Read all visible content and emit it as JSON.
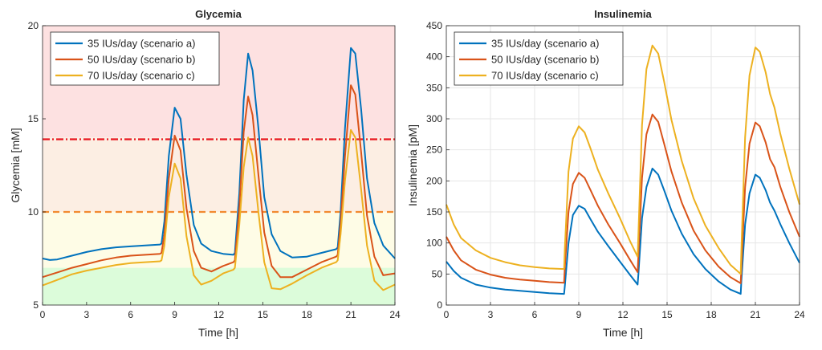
{
  "colors": {
    "scenario_a": "#0072BD",
    "scenario_b": "#D95319",
    "scenario_c": "#EDB120",
    "hyper_threshold": "#E8141E",
    "mid_threshold": "#F28A30",
    "band_red": "#FDE1E1",
    "band_orange": "#FCEEE3",
    "band_yellow": "#FEFCE6",
    "band_green": "#DCFCDA"
  },
  "chart_data": [
    {
      "type": "line",
      "title": "Glycemia",
      "xlabel": "Time [h]",
      "ylabel": "Glycemia [mM]",
      "xlim": [
        0,
        24
      ],
      "ylim": [
        5,
        20
      ],
      "xticks": [
        "0",
        "3",
        "6",
        "9",
        "12",
        "15",
        "18",
        "21",
        "24"
      ],
      "yticks": [
        "5",
        "10",
        "15",
        "20"
      ],
      "grid": false,
      "legend_position": "top-left",
      "bands": [
        {
          "from": 14,
          "to": 20,
          "color": "band_red"
        },
        {
          "from": 10,
          "to": 14,
          "color": "band_orange"
        },
        {
          "from": 7,
          "to": 10,
          "color": "band_yellow"
        },
        {
          "from": 5,
          "to": 7,
          "color": "band_green"
        }
      ],
      "thresholds": [
        {
          "y": 13.9,
          "color": "hyper_threshold",
          "style": "dashdot"
        },
        {
          "y": 10,
          "color": "mid_threshold",
          "style": "dashed"
        }
      ],
      "series": [
        {
          "name": "35 IUs/day (scenario a)",
          "color": "scenario_a",
          "x": [
            0,
            0.5,
            1,
            2,
            3,
            4,
            5,
            6,
            7,
            8,
            8.1,
            8.3,
            8.6,
            9,
            9.4,
            9.8,
            10.3,
            10.8,
            11.5,
            12.3,
            13,
            13.1,
            13.4,
            13.7,
            14,
            14.3,
            14.7,
            15.1,
            15.6,
            16.2,
            17,
            18,
            19,
            20,
            20.1,
            20.3,
            20.6,
            21,
            21.3,
            21.7,
            22.1,
            22.6,
            23.2,
            24
          ],
          "y": [
            7.5,
            7.42,
            7.45,
            7.65,
            7.85,
            8.0,
            8.1,
            8.15,
            8.2,
            8.25,
            8.3,
            9.5,
            13.0,
            15.6,
            15.0,
            12.0,
            9.3,
            8.3,
            7.9,
            7.75,
            7.7,
            7.8,
            11.0,
            16.0,
            18.5,
            17.6,
            14.5,
            10.8,
            8.8,
            7.9,
            7.55,
            7.6,
            7.8,
            8.0,
            8.1,
            10.0,
            14.5,
            18.8,
            18.5,
            15.5,
            11.8,
            9.4,
            8.2,
            7.5
          ]
        },
        {
          "name": "50 IUs/day (scenario b)",
          "color": "scenario_b",
          "x": [
            0,
            1,
            2,
            3,
            4,
            5,
            6,
            7,
            8,
            8.1,
            8.3,
            8.6,
            9,
            9.4,
            9.8,
            10.3,
            10.8,
            11.5,
            12.3,
            13,
            13.1,
            13.4,
            13.7,
            14,
            14.3,
            14.7,
            15.1,
            15.6,
            16.2,
            17,
            18,
            19,
            20,
            20.1,
            20.3,
            20.6,
            21,
            21.3,
            21.7,
            22.1,
            22.6,
            23.2,
            24
          ],
          "y": [
            6.5,
            6.75,
            7.0,
            7.2,
            7.4,
            7.55,
            7.65,
            7.7,
            7.75,
            7.8,
            8.8,
            11.8,
            14.1,
            13.3,
            10.2,
            7.9,
            7.0,
            6.8,
            7.1,
            7.3,
            7.4,
            10.2,
            14.3,
            16.2,
            15.2,
            12.0,
            8.9,
            7.1,
            6.5,
            6.5,
            6.9,
            7.3,
            7.6,
            7.7,
            9.4,
            13.0,
            16.8,
            16.3,
            13.2,
            9.8,
            7.6,
            6.6,
            6.7
          ]
        },
        {
          "name": "70 IUs/day (scenario c)",
          "color": "scenario_c",
          "x": [
            0,
            1,
            2,
            3,
            4,
            5,
            6,
            7,
            8,
            8.1,
            8.3,
            8.6,
            9,
            9.4,
            9.8,
            10.3,
            10.8,
            11.5,
            12.3,
            13,
            13.1,
            13.4,
            13.7,
            14,
            14.3,
            14.7,
            15.1,
            15.6,
            16.2,
            17,
            18,
            19,
            20,
            20.1,
            20.3,
            20.6,
            21,
            21.3,
            21.7,
            22.1,
            22.6,
            23.2,
            24
          ],
          "y": [
            6.05,
            6.35,
            6.65,
            6.85,
            7.0,
            7.15,
            7.25,
            7.3,
            7.35,
            7.4,
            8.2,
            10.8,
            12.6,
            11.8,
            8.7,
            6.6,
            6.1,
            6.3,
            6.7,
            6.9,
            7.0,
            9.3,
            12.4,
            14.0,
            13.0,
            10.0,
            7.3,
            5.9,
            5.85,
            6.15,
            6.6,
            7.0,
            7.3,
            7.4,
            8.8,
            11.7,
            14.4,
            14.0,
            11.2,
            8.2,
            6.3,
            5.8,
            6.1
          ]
        }
      ]
    },
    {
      "type": "line",
      "title": "Insulinemia",
      "xlabel": "Time [h]",
      "ylabel": "Insulinemia [pM]",
      "xlim": [
        0,
        24
      ],
      "ylim": [
        0,
        450
      ],
      "xticks": [
        "0",
        "3",
        "6",
        "9",
        "12",
        "15",
        "18",
        "21",
        "24"
      ],
      "yticks": [
        "0",
        "50",
        "100",
        "150",
        "200",
        "250",
        "300",
        "350",
        "400",
        "450"
      ],
      "grid": true,
      "legend_position": "top-left",
      "series": [
        {
          "name": "35 IUs/day (scenario a)",
          "color": "scenario_a",
          "x": [
            0,
            0.5,
            1,
            2,
            3,
            4,
            5,
            6,
            7,
            8,
            8.05,
            8.3,
            8.6,
            9,
            9.4,
            9.8,
            10.3,
            11,
            11.8,
            12.5,
            13,
            13.05,
            13.3,
            13.6,
            14,
            14.4,
            14.8,
            15.3,
            16,
            16.8,
            17.6,
            18.5,
            19.3,
            20,
            20.05,
            20.3,
            20.6,
            21,
            21.3,
            21.7,
            22,
            22.3,
            22.7,
            23.3,
            24
          ],
          "y": [
            70,
            55,
            44,
            33,
            28,
            25,
            23,
            21,
            19,
            18,
            30,
            100,
            145,
            160,
            155,
            138,
            118,
            95,
            70,
            48,
            33,
            50,
            140,
            190,
            220,
            210,
            185,
            152,
            115,
            82,
            58,
            38,
            25,
            18,
            40,
            130,
            180,
            210,
            205,
            185,
            165,
            152,
            130,
            100,
            68
          ]
        },
        {
          "name": "50 IUs/day (scenario b)",
          "color": "scenario_b",
          "x": [
            0,
            0.5,
            1,
            2,
            3,
            4,
            5,
            6,
            7,
            8,
            8.05,
            8.3,
            8.6,
            9,
            9.4,
            9.8,
            10.3,
            11,
            11.8,
            12.5,
            13,
            13.05,
            13.3,
            13.6,
            14,
            14.4,
            14.8,
            15.3,
            16,
            16.8,
            17.6,
            18.5,
            19.3,
            20,
            20.05,
            20.3,
            20.6,
            21,
            21.3,
            21.7,
            22,
            22.3,
            22.7,
            23.3,
            24
          ],
          "y": [
            110,
            88,
            72,
            57,
            49,
            44,
            41,
            39,
            37,
            36,
            60,
            150,
            195,
            213,
            205,
            185,
            160,
            130,
            100,
            72,
            53,
            80,
            205,
            275,
            307,
            295,
            260,
            215,
            165,
            120,
            88,
            62,
            45,
            35,
            62,
            190,
            260,
            294,
            288,
            262,
            235,
            222,
            190,
            150,
            110
          ]
        },
        {
          "name": "70 IUs/day (scenario c)",
          "color": "scenario_c",
          "x": [
            0,
            0.5,
            1,
            2,
            3,
            4,
            5,
            6,
            7,
            8,
            8.05,
            8.3,
            8.6,
            9,
            9.4,
            9.8,
            10.3,
            11,
            11.8,
            12.5,
            13,
            13.05,
            13.3,
            13.6,
            14,
            14.4,
            14.8,
            15.3,
            16,
            16.8,
            17.6,
            18.5,
            19.3,
            20,
            20.05,
            20.3,
            20.6,
            21,
            21.3,
            21.7,
            22,
            22.3,
            22.7,
            23.3,
            24
          ],
          "y": [
            162,
            130,
            108,
            88,
            76,
            69,
            64,
            61,
            59,
            58,
            90,
            215,
            268,
            288,
            278,
            252,
            218,
            180,
            140,
            102,
            78,
            115,
            290,
            380,
            418,
            405,
            360,
            298,
            232,
            172,
            128,
            92,
            65,
            50,
            90,
            270,
            370,
            415,
            408,
            375,
            340,
            318,
            275,
            220,
            162
          ]
        }
      ]
    }
  ]
}
